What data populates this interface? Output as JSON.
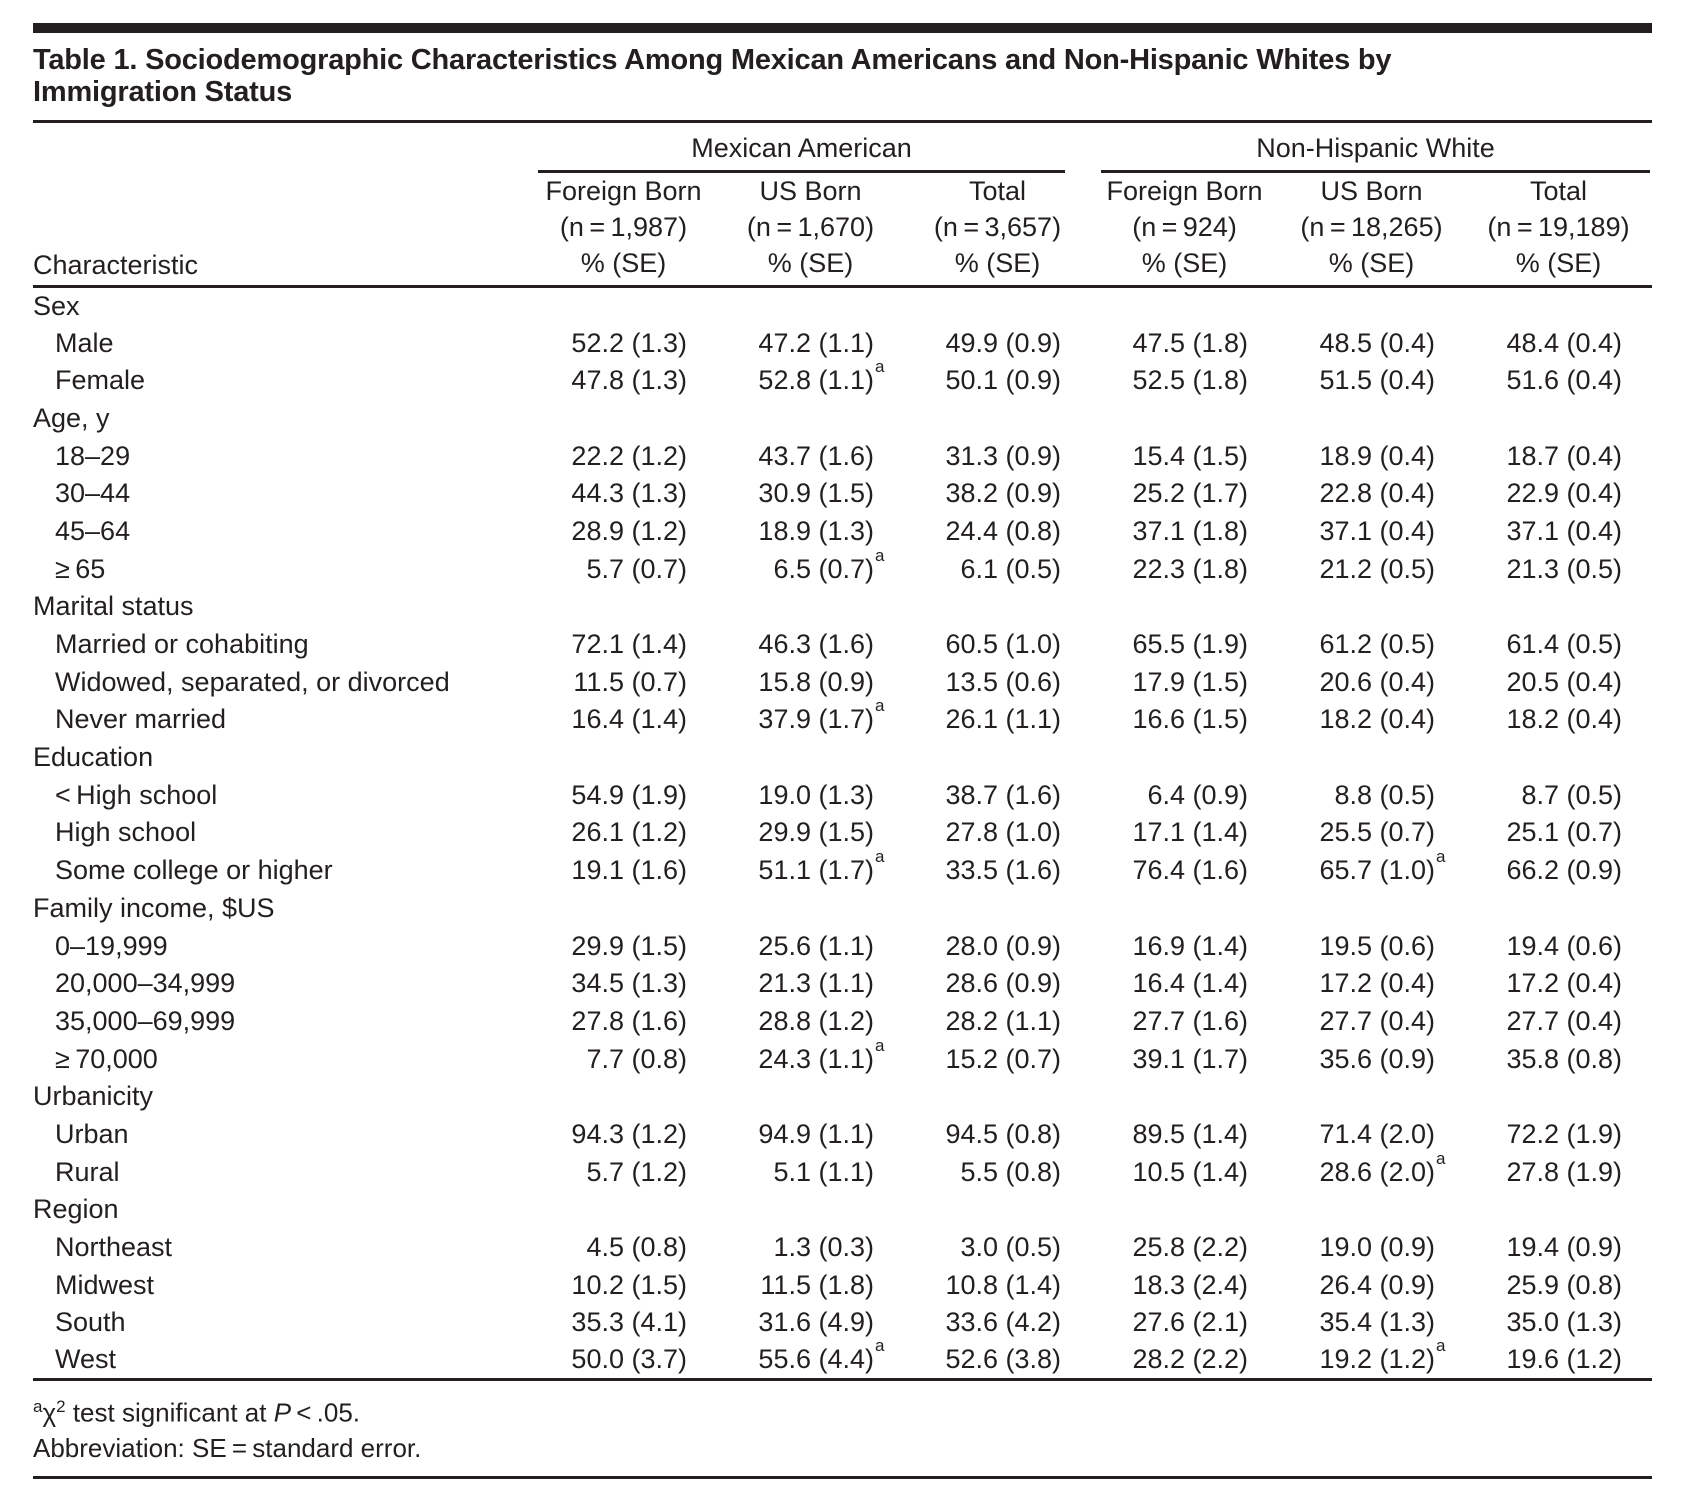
{
  "page": {
    "title_line1": "Table 1. Sociodemographic Characteristics Among Mexican Americans and Non-Hispanic Whites by",
    "title_line2": "Immigration Status"
  },
  "colors": {
    "ink": "#231f20",
    "background": "#ffffff"
  },
  "table": {
    "row_label_header": "Characteristic",
    "groups": [
      {
        "label": "Mexican American"
      },
      {
        "label": "Non-Hispanic White"
      }
    ],
    "columns": [
      {
        "group": "Mexican American",
        "label": "Foreign Born",
        "n": "(n = 1,987)",
        "unit": "% (SE)"
      },
      {
        "group": "Mexican American",
        "label": "US Born",
        "n": "(n = 1,670)",
        "unit": "% (SE)"
      },
      {
        "group": "Mexican American",
        "label": "Total",
        "n": "(n = 3,657)",
        "unit": "% (SE)"
      },
      {
        "group": "Non-Hispanic White",
        "label": "Foreign Born",
        "n": "(n = 924)",
        "unit": "% (SE)"
      },
      {
        "group": "Non-Hispanic White",
        "label": "US Born",
        "n": "(n = 18,265)",
        "unit": "% (SE)"
      },
      {
        "group": "Non-Hispanic White",
        "label": "Total",
        "n": "(n = 19,189)",
        "unit": "% (SE)"
      }
    ],
    "sections": [
      {
        "label": "Sex",
        "rows": [
          {
            "label": "Male",
            "values": [
              "52.2 (1.3)",
              "47.2 (1.1)",
              "49.9 (0.9)",
              "47.5 (1.8)",
              "48.5 (0.4)",
              "48.4 (0.4)"
            ]
          },
          {
            "label": "Female",
            "values": [
              "47.8 (1.3)",
              "52.8 (1.1)^a",
              "50.1 (0.9)",
              "52.5 (1.8)",
              "51.5 (0.4)",
              "51.6 (0.4)"
            ]
          }
        ]
      },
      {
        "label": "Age, y",
        "rows": [
          {
            "label": "18–29",
            "values": [
              "22.2 (1.2)",
              "43.7 (1.6)",
              "31.3 (0.9)",
              "15.4 (1.5)",
              "18.9 (0.4)",
              "18.7 (0.4)"
            ]
          },
          {
            "label": "30–44",
            "values": [
              "44.3 (1.3)",
              "30.9 (1.5)",
              "38.2 (0.9)",
              "25.2 (1.7)",
              "22.8 (0.4)",
              "22.9 (0.4)"
            ]
          },
          {
            "label": "45–64",
            "values": [
              "28.9 (1.2)",
              "18.9 (1.3)",
              "24.4 (0.8)",
              "37.1 (1.8)",
              "37.1 (0.4)",
              "37.1 (0.4)"
            ]
          },
          {
            "label": "≥ 65",
            "values": [
              "5.7 (0.7)",
              "6.5 (0.7)^a",
              "6.1 (0.5)",
              "22.3 (1.8)",
              "21.2 (0.5)",
              "21.3 (0.5)"
            ]
          }
        ]
      },
      {
        "label": "Marital status",
        "rows": [
          {
            "label": "Married or cohabiting",
            "values": [
              "72.1 (1.4)",
              "46.3 (1.6)",
              "60.5 (1.0)",
              "65.5 (1.9)",
              "61.2 (0.5)",
              "61.4 (0.5)"
            ]
          },
          {
            "label": "Widowed, separated, or divorced",
            "values": [
              "11.5 (0.7)",
              "15.8 (0.9)",
              "13.5 (0.6)",
              "17.9 (1.5)",
              "20.6 (0.4)",
              "20.5 (0.4)"
            ]
          },
          {
            "label": "Never married",
            "values": [
              "16.4 (1.4)",
              "37.9 (1.7)^a",
              "26.1 (1.1)",
              "16.6 (1.5)",
              "18.2 (0.4)",
              "18.2 (0.4)"
            ]
          }
        ]
      },
      {
        "label": "Education",
        "rows": [
          {
            "label": "< High school",
            "values": [
              "54.9 (1.9)",
              "19.0 (1.3)",
              "38.7 (1.6)",
              "6.4 (0.9)",
              "8.8 (0.5)",
              "8.7 (0.5)"
            ]
          },
          {
            "label": "High school",
            "values": [
              "26.1 (1.2)",
              "29.9 (1.5)",
              "27.8 (1.0)",
              "17.1 (1.4)",
              "25.5 (0.7)",
              "25.1 (0.7)"
            ]
          },
          {
            "label": "Some college or higher",
            "values": [
              "19.1 (1.6)",
              "51.1 (1.7)^a",
              "33.5 (1.6)",
              "76.4 (1.6)",
              "65.7 (1.0)^a",
              "66.2 (0.9)"
            ]
          }
        ]
      },
      {
        "label": "Family income, $US",
        "rows": [
          {
            "label": "0–19,999",
            "values": [
              "29.9 (1.5)",
              "25.6 (1.1)",
              "28.0 (0.9)",
              "16.9 (1.4)",
              "19.5 (0.6)",
              "19.4 (0.6)"
            ]
          },
          {
            "label": "20,000–34,999",
            "values": [
              "34.5 (1.3)",
              "21.3 (1.1)",
              "28.6 (0.9)",
              "16.4 (1.4)",
              "17.2 (0.4)",
              "17.2 (0.4)"
            ]
          },
          {
            "label": "35,000–69,999",
            "values": [
              "27.8 (1.6)",
              "28.8 (1.2)",
              "28.2 (1.1)",
              "27.7 (1.6)",
              "27.7 (0.4)",
              "27.7 (0.4)"
            ]
          },
          {
            "label": "≥ 70,000",
            "values": [
              "7.7 (0.8)",
              "24.3 (1.1)^a",
              "15.2 (0.7)",
              "39.1 (1.7)",
              "35.6 (0.9)",
              "35.8 (0.8)"
            ]
          }
        ]
      },
      {
        "label": "Urbanicity",
        "rows": [
          {
            "label": "Urban",
            "values": [
              "94.3 (1.2)",
              "94.9 (1.1)",
              "94.5 (0.8)",
              "89.5 (1.4)",
              "71.4 (2.0)",
              "72.2 (1.9)"
            ]
          },
          {
            "label": "Rural",
            "values": [
              "5.7 (1.2)",
              "5.1 (1.1)",
              "5.5 (0.8)",
              "10.5 (1.4)",
              "28.6 (2.0)^a",
              "27.8 (1.9)"
            ]
          }
        ]
      },
      {
        "label": "Region",
        "rows": [
          {
            "label": "Northeast",
            "values": [
              "4.5 (0.8)",
              "1.3 (0.3)",
              "3.0 (0.5)",
              "25.8 (2.2)",
              "19.0 (0.9)",
              "19.4 (0.9)"
            ]
          },
          {
            "label": "Midwest",
            "values": [
              "10.2 (1.5)",
              "11.5 (1.8)",
              "10.8 (1.4)",
              "18.3 (2.4)",
              "26.4 (0.9)",
              "25.9 (0.8)"
            ]
          },
          {
            "label": "South",
            "values": [
              "35.3 (4.1)",
              "31.6 (4.9)",
              "33.6 (4.2)",
              "27.6 (2.1)",
              "35.4 (1.3)",
              "35.0 (1.3)"
            ]
          },
          {
            "label": "West",
            "values": [
              "50.0 (3.7)",
              "55.6 (4.4)^a",
              "52.6 (3.8)",
              "28.2 (2.2)",
              "19.2 (1.2)^a",
              "19.6 (1.2)"
            ]
          }
        ]
      }
    ],
    "footnotes": {
      "sig_marker": "a",
      "sig_stat": "χ",
      "sig_exponent": "2",
      "sig_text": " test significant at ",
      "p_symbol": "P",
      "sig_threshold": " < .05.",
      "abbreviation": "Abbreviation: SE = standard error."
    }
  }
}
